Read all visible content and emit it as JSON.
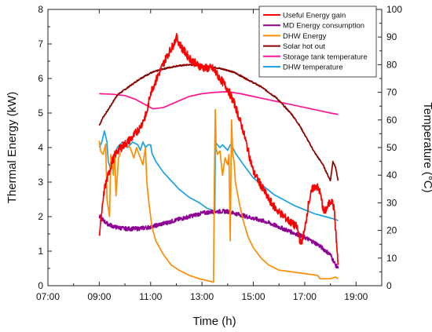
{
  "chart_data": {
    "type": "line",
    "xlabel": "Time (h)",
    "ylabel_left": "Thermal Energy (kW)",
    "ylabel_right": "Temperature (°C)",
    "xlim": [
      7,
      20
    ],
    "ylim_left": [
      0,
      8
    ],
    "ylim_right": [
      0,
      100
    ],
    "x_ticks": [
      "07:00",
      "09:00",
      "11:00",
      "13:00",
      "15:00",
      "17:00",
      "19:00"
    ],
    "x_tick_values": [
      7,
      9,
      11,
      13,
      15,
      17,
      19
    ],
    "y_left_ticks": [
      "0",
      "1",
      "2",
      "3",
      "4",
      "5",
      "6",
      "7",
      "8"
    ],
    "y_right_ticks": [
      "0",
      "10",
      "20",
      "30",
      "40",
      "50",
      "60",
      "70",
      "80",
      "90",
      "100"
    ],
    "grid": false,
    "legend_position": "top-right",
    "series": [
      {
        "name": "Useful Energy gain",
        "color": "#ff0000",
        "axis": "left",
        "noise": 0.12,
        "x": [
          9.0,
          9.1,
          9.2,
          9.35,
          9.5,
          9.7,
          10.0,
          10.3,
          10.6,
          10.85,
          11.0,
          11.3,
          11.6,
          11.9,
          12.0,
          12.2,
          12.5,
          12.8,
          13.1,
          13.4,
          13.7,
          14.0,
          14.3,
          14.6,
          14.8,
          15.0,
          15.3,
          15.6,
          15.9,
          16.2,
          16.5,
          16.7,
          16.85,
          17.0,
          17.15,
          17.3,
          17.45,
          17.6,
          17.75,
          17.9,
          18.05,
          18.15,
          18.3
        ],
        "y": [
          1.5,
          2.1,
          2.8,
          3.2,
          3.6,
          3.9,
          4.1,
          4.3,
          4.6,
          5.0,
          5.6,
          6.1,
          6.6,
          7.0,
          7.2,
          6.9,
          6.6,
          6.4,
          6.3,
          6.3,
          6.0,
          5.7,
          5.2,
          4.5,
          3.9,
          3.3,
          2.9,
          2.5,
          2.2,
          2.0,
          1.8,
          1.7,
          1.2,
          1.6,
          2.4,
          2.8,
          2.9,
          2.7,
          2.1,
          2.3,
          2.5,
          2.2,
          0.6
        ]
      },
      {
        "name": "MD Energy consumption",
        "color": "#8e0094",
        "axis": "left",
        "noise": 0.06,
        "x": [
          9.0,
          9.3,
          9.6,
          10.0,
          10.5,
          11.0,
          11.5,
          12.0,
          12.5,
          13.0,
          13.5,
          14.0,
          14.5,
          15.0,
          15.5,
          16.0,
          16.5,
          17.0,
          17.5,
          18.0,
          18.2,
          18.3
        ],
        "y": [
          2.0,
          1.8,
          1.7,
          1.65,
          1.65,
          1.7,
          1.8,
          1.9,
          2.0,
          2.1,
          2.15,
          2.15,
          2.05,
          1.95,
          1.85,
          1.7,
          1.55,
          1.4,
          1.2,
          0.9,
          0.6,
          0.5
        ]
      },
      {
        "name": "DHW Energy",
        "color": "#ff8c00",
        "axis": "left",
        "noise": 0,
        "x": [
          9.0,
          9.05,
          9.15,
          9.25,
          9.3,
          9.4,
          9.45,
          9.55,
          9.6,
          9.65,
          9.75,
          9.85,
          10.0,
          10.2,
          10.35,
          10.45,
          10.55,
          10.7,
          10.8,
          10.85,
          10.95,
          11.05,
          11.2,
          11.5,
          11.8,
          12.1,
          12.5,
          12.9,
          13.2,
          13.45,
          13.48,
          13.52,
          13.55,
          13.6,
          13.7,
          13.8,
          13.9,
          14.0,
          14.05,
          14.1,
          14.15,
          14.2,
          14.25,
          14.3,
          14.45,
          14.6,
          14.8,
          15.0,
          15.3,
          15.6,
          16.0,
          16.5,
          17.0,
          17.5,
          17.6,
          18.0,
          18.2,
          18.3
        ],
        "y": [
          4.2,
          3.9,
          3.8,
          4.1,
          2.5,
          2.0,
          3.8,
          3.2,
          3.9,
          2.6,
          3.7,
          3.9,
          4.1,
          4.0,
          3.7,
          4.0,
          3.8,
          3.5,
          4.0,
          3.0,
          2.3,
          1.7,
          1.3,
          0.9,
          0.6,
          0.45,
          0.3,
          0.2,
          0.15,
          0.1,
          3.0,
          5.1,
          4.0,
          3.8,
          3.9,
          3.2,
          3.7,
          3.5,
          3.8,
          1.3,
          4.8,
          3.8,
          3.6,
          3.0,
          2.4,
          1.9,
          1.4,
          1.1,
          0.8,
          0.6,
          0.45,
          0.4,
          0.35,
          0.3,
          0.2,
          0.2,
          0.25,
          0.2
        ]
      },
      {
        "name": "Solar hot out",
        "color": "#8b0000",
        "axis": "right",
        "noise": 0.25,
        "x": [
          9.0,
          9.15,
          9.3,
          9.5,
          9.7,
          10.0,
          10.3,
          10.6,
          11.0,
          11.5,
          12.0,
          12.5,
          13.0,
          13.5,
          14.0,
          14.3,
          14.6,
          15.0,
          15.3,
          15.6,
          15.9,
          16.2,
          16.5,
          16.8,
          17.1,
          17.4,
          17.7,
          17.9,
          18.0,
          18.1,
          18.2,
          18.3
        ],
        "y": [
          58,
          61,
          63,
          66,
          69,
          71,
          73,
          75,
          77,
          78.5,
          79.5,
          80,
          79.5,
          79,
          78,
          77,
          75.5,
          73.5,
          72,
          70,
          68,
          65,
          62,
          58,
          53,
          48,
          44,
          40,
          38,
          45,
          43,
          38
        ]
      },
      {
        "name": "Storage tank temperature",
        "color": "#ff1493",
        "axis": "right",
        "noise": 0,
        "x": [
          9.0,
          9.5,
          10.0,
          10.4,
          10.8,
          11.1,
          11.5,
          12.0,
          12.5,
          13.0,
          13.5,
          14.0,
          14.5,
          15.0,
          15.5,
          16.0,
          16.5,
          17.0,
          17.5,
          18.0,
          18.3
        ],
        "y": [
          69.5,
          69.3,
          68.8,
          67.5,
          65.5,
          64.0,
          64.5,
          66.5,
          68.5,
          69.5,
          70.0,
          70.2,
          69.5,
          68.5,
          67.5,
          66.5,
          65.5,
          64.5,
          63.5,
          62.5,
          62.0
        ]
      },
      {
        "name": "DHW temperature",
        "color": "#1aa3e0",
        "axis": "right",
        "noise": 0,
        "x": [
          9.0,
          9.1,
          9.2,
          9.3,
          9.35,
          9.45,
          9.55,
          9.7,
          9.9,
          10.1,
          10.3,
          10.5,
          10.6,
          10.7,
          10.8,
          10.9,
          11.0,
          11.05,
          11.2,
          11.5,
          11.8,
          12.1,
          12.5,
          12.9,
          13.2,
          13.5,
          13.52,
          13.6,
          13.7,
          13.8,
          13.9,
          14.0,
          14.1,
          14.2,
          14.3,
          14.6,
          15.0,
          15.4,
          15.8,
          16.2,
          16.6,
          17.0,
          17.4,
          17.8,
          18.2,
          18.3
        ],
        "y": [
          50,
          52,
          56,
          52,
          45,
          42,
          46,
          50,
          52,
          50,
          52,
          51,
          49,
          52,
          50,
          51,
          51,
          48,
          45,
          41,
          38,
          35,
          32,
          30,
          28,
          27,
          52,
          51,
          50,
          51,
          50,
          49,
          51,
          50,
          48,
          44,
          39,
          36,
          33,
          31,
          29,
          27.5,
          26,
          25,
          24,
          23.5
        ]
      }
    ]
  }
}
